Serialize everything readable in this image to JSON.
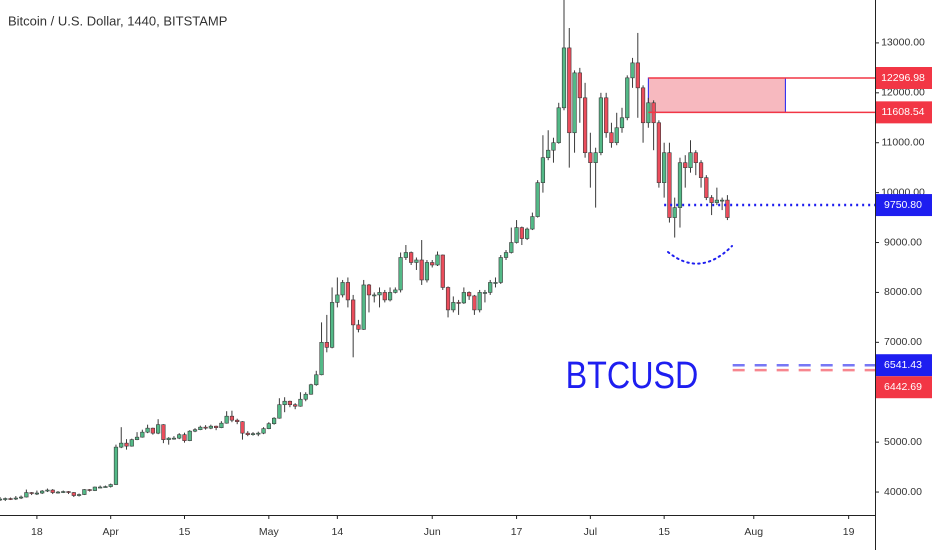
{
  "chart_data": {
    "type": "candlestick",
    "title": "Bitcoin / U.S. Dollar, 1440, BITSTAMP",
    "annotation": "BTCUSD",
    "x": [
      "Mar 11",
      "Mar 12",
      "Mar 13",
      "Mar 14",
      "Mar 15",
      "Mar 16",
      "Mar 17",
      "Mar 18",
      "Mar 19",
      "Mar 20",
      "Mar 21",
      "Mar 22",
      "Mar 23",
      "Mar 24",
      "Mar 25",
      "Mar 26",
      "Mar 27",
      "Mar 28",
      "Mar 29",
      "Mar 30",
      "Mar 31",
      "Apr 1",
      "Apr 2",
      "Apr 3",
      "Apr 4",
      "Apr 5",
      "Apr 6",
      "Apr 7",
      "Apr 8",
      "Apr 9",
      "Apr 10",
      "Apr 11",
      "Apr 12",
      "Apr 13",
      "Apr 14",
      "Apr 15",
      "Apr 16",
      "Apr 17",
      "Apr 18",
      "Apr 19",
      "Apr 20",
      "Apr 21",
      "Apr 22",
      "Apr 23",
      "Apr 24",
      "Apr 25",
      "Apr 26",
      "Apr 27",
      "Apr 28",
      "Apr 29",
      "Apr 30",
      "May 1",
      "May 2",
      "May 3",
      "May 4",
      "May 5",
      "May 6",
      "May 7",
      "May 8",
      "May 9",
      "May 10",
      "May 11",
      "May 12",
      "May 13",
      "May 14",
      "May 15",
      "May 16",
      "May 17",
      "May 18",
      "May 19",
      "May 20",
      "May 21",
      "May 22",
      "May 23",
      "May 24",
      "May 25",
      "May 26",
      "May 27",
      "May 28",
      "May 29",
      "May 30",
      "May 31",
      "Jun 1",
      "Jun 2",
      "Jun 3",
      "Jun 4",
      "Jun 5",
      "Jun 6",
      "Jun 7",
      "Jun 8",
      "Jun 9",
      "Jun 10",
      "Jun 11",
      "Jun 12",
      "Jun 13",
      "Jun 14",
      "Jun 15",
      "Jun 16",
      "Jun 17",
      "Jun 18",
      "Jun 19",
      "Jun 20",
      "Jun 21",
      "Jun 22",
      "Jun 23",
      "Jun 24",
      "Jun 25",
      "Jun 26",
      "Jun 27",
      "Jun 28",
      "Jun 29",
      "Jun 30",
      "Jul 1",
      "Jul 2",
      "Jul 3",
      "Jul 4",
      "Jul 5",
      "Jul 6",
      "Jul 7",
      "Jul 8",
      "Jul 9",
      "Jul 10",
      "Jul 11",
      "Jul 12",
      "Jul 13",
      "Jul 14",
      "Jul 15",
      "Jul 16",
      "Jul 17",
      "Jul 18",
      "Jul 19",
      "Jul 20",
      "Jul 21",
      "Jul 22",
      "Jul 23",
      "Jul 24",
      "Jul 25",
      "Jul 26",
      "Jul 27"
    ],
    "open": [
      3850,
      3860,
      3870,
      3865,
      3880,
      3900,
      3990,
      3970,
      3980,
      4020,
      4040,
      3990,
      4000,
      4010,
      3990,
      3930,
      3950,
      4050,
      4030,
      4100,
      4100,
      4110,
      4150,
      4900,
      4980,
      4920,
      5050,
      5100,
      5200,
      5280,
      5180,
      5350,
      5050,
      5080,
      5080,
      5150,
      5030,
      5220,
      5250,
      5300,
      5280,
      5320,
      5290,
      5380,
      5520,
      5440,
      5410,
      5180,
      5150,
      5170,
      5180,
      5270,
      5370,
      5480,
      5750,
      5820,
      5750,
      5720,
      5860,
      5960,
      6150,
      6350,
      7000,
      6900,
      7800,
      7950,
      8200,
      7850,
      7350,
      7260,
      8150,
      7950,
      7950,
      8000,
      7850,
      8000,
      8050,
      8700,
      8800,
      8600,
      8650,
      8250,
      8600,
      8550,
      8750,
      8100,
      7650,
      7800,
      7790,
      8000,
      7930,
      7650,
      8000,
      8000,
      8200,
      8200,
      8700,
      8800,
      9000,
      9300,
      9080,
      9270,
      9520,
      10200,
      10700,
      10850,
      11000,
      11700,
      12900,
      11200,
      12400,
      11900,
      10800,
      10600,
      10800,
      11900,
      11200,
      11000,
      11300,
      11500,
      12300,
      12600,
      12100,
      11400,
      11800,
      11400,
      10200,
      10800,
      9500,
      9700,
      10600,
      10500,
      10800,
      10600,
      10300,
      9900,
      9800,
      9850,
      9850
    ],
    "high": [
      3900,
      3890,
      3890,
      3920,
      3930,
      4050,
      4000,
      4030,
      4040,
      4070,
      4060,
      4020,
      4030,
      4020,
      4000,
      3970,
      4060,
      4060,
      4110,
      4130,
      4130,
      4170,
      4950,
      5300,
      5060,
      5070,
      5200,
      5250,
      5350,
      5290,
      5460,
      5360,
      5100,
      5120,
      5180,
      5190,
      5240,
      5280,
      5330,
      5340,
      5350,
      5330,
      5420,
      5620,
      5630,
      5470,
      5420,
      5220,
      5200,
      5210,
      5300,
      5400,
      5500,
      5880,
      5900,
      5830,
      5780,
      6000,
      6000,
      6170,
      6430,
      7400,
      7550,
      8100,
      8300,
      8250,
      8300,
      7950,
      7450,
      8250,
      8170,
      8000,
      8100,
      8050,
      8100,
      8100,
      8800,
      8950,
      8820,
      8700,
      9050,
      8650,
      8650,
      8820,
      8760,
      8120,
      7920,
      7850,
      8100,
      8020,
      7950,
      8050,
      8050,
      8250,
      8300,
      8750,
      8850,
      9300,
      9450,
      9320,
      9300,
      9600,
      10250,
      11150,
      11250,
      11100,
      11800,
      13860,
      13300,
      12450,
      12500,
      12200,
      11200,
      10900,
      12000,
      12000,
      11400,
      11600,
      11700,
      12350,
      12700,
      13200,
      12150,
      11900,
      11850,
      11450,
      11000,
      11000,
      9900,
      10700,
      10750,
      11050,
      10850,
      10650,
      10350,
      9950,
      10100,
      9900,
      9950
    ],
    "low": [
      3820,
      3820,
      3840,
      3840,
      3860,
      3890,
      3940,
      3940,
      3960,
      4000,
      3960,
      3970,
      3980,
      3960,
      3900,
      3910,
      3940,
      4010,
      4020,
      4080,
      4090,
      4090,
      4140,
      4880,
      4850,
      4910,
      5040,
      5090,
      5180,
      5150,
      5160,
      4980,
      4950,
      5050,
      5060,
      4990,
      5020,
      5200,
      5240,
      5250,
      5260,
      5240,
      5280,
      5370,
      5400,
      5360,
      5050,
      5120,
      5130,
      5120,
      5160,
      5260,
      5350,
      5470,
      5600,
      5700,
      5660,
      5710,
      5820,
      5950,
      6130,
      6340,
      6800,
      6880,
      7700,
      7900,
      7700,
      6700,
      7200,
      7250,
      7600,
      7800,
      7700,
      7800,
      7820,
      7980,
      8000,
      8650,
      8550,
      8450,
      8150,
      8200,
      8500,
      8530,
      8050,
      7500,
      7600,
      7550,
      7770,
      7850,
      7550,
      7600,
      7800,
      7950,
      8100,
      8170,
      8650,
      8780,
      8980,
      8950,
      9050,
      9250,
      9500,
      10000,
      10650,
      10600,
      10980,
      11650,
      10500,
      10800,
      11400,
      10700,
      10100,
      9700,
      10750,
      11100,
      10900,
      10950,
      11200,
      11450,
      12100,
      11500,
      11000,
      11300,
      10850,
      10100,
      9900,
      9400,
      9100,
      9300,
      10100,
      10400,
      10350,
      10100,
      9850,
      9550,
      9750,
      9650,
      9450
    ],
    "close": [
      3860,
      3870,
      3865,
      3880,
      3900,
      3990,
      3970,
      3980,
      4020,
      4040,
      3990,
      4000,
      4010,
      3990,
      3930,
      3950,
      4050,
      4030,
      4100,
      4100,
      4110,
      4150,
      4900,
      4980,
      4920,
      5050,
      5100,
      5200,
      5280,
      5180,
      5350,
      5050,
      5080,
      5080,
      5150,
      5030,
      5220,
      5250,
      5300,
      5280,
      5320,
      5290,
      5380,
      5520,
      5440,
      5410,
      5180,
      5150,
      5170,
      5180,
      5270,
      5370,
      5480,
      5750,
      5820,
      5750,
      5720,
      5860,
      5960,
      6150,
      6350,
      7000,
      6900,
      7800,
      7950,
      8200,
      7850,
      7350,
      7260,
      8150,
      7950,
      7950,
      8000,
      7850,
      8000,
      8050,
      8700,
      8800,
      8600,
      8650,
      8250,
      8600,
      8550,
      8750,
      8100,
      7650,
      7800,
      7790,
      8000,
      7930,
      7650,
      8000,
      8000,
      8200,
      8200,
      8700,
      8800,
      9000,
      9300,
      9080,
      9270,
      9520,
      10200,
      10700,
      10850,
      11000,
      11700,
      12900,
      11200,
      12400,
      11900,
      10800,
      10600,
      10800,
      11900,
      11200,
      11000,
      11300,
      11500,
      12300,
      12600,
      12100,
      11400,
      11800,
      11400,
      10200,
      10800,
      9500,
      9700,
      10600,
      10500,
      10800,
      10600,
      10300,
      9900,
      9800,
      9850,
      9850,
      9500
    ],
    "up_color": "#53b987",
    "down_color": "#eb4d5c",
    "xlim": [
      "Mar 11",
      "Aug 24"
    ],
    "xticks": [
      {
        "value": "Mar 18",
        "label": "18"
      },
      {
        "value": "Apr 1",
        "label": "Apr"
      },
      {
        "value": "Apr 15",
        "label": "15"
      },
      {
        "value": "May 1",
        "label": "May"
      },
      {
        "value": "May 14",
        "label": "14"
      },
      {
        "value": "Jun 1",
        "label": "Jun"
      },
      {
        "value": "Jun 17",
        "label": "17"
      },
      {
        "value": "Jul 1",
        "label": "Jul"
      },
      {
        "value": "Jul 15",
        "label": "15"
      },
      {
        "value": "Aug 1",
        "label": "Aug"
      },
      {
        "value": "Aug 19",
        "label": "19"
      }
    ],
    "ylim": [
      3540,
      13860
    ],
    "yticks": [
      {
        "value": 4000,
        "label": "4000.00"
      },
      {
        "value": 5000,
        "label": "5000.00"
      },
      {
        "value": 7000,
        "label": "7000.00"
      },
      {
        "value": 8000,
        "label": "8000.00"
      },
      {
        "value": 9000,
        "label": "9000.00"
      },
      {
        "value": 10000,
        "label": "10000.00"
      },
      {
        "value": 11000,
        "label": "11000.00"
      },
      {
        "value": 12000,
        "label": "12000.00"
      },
      {
        "value": 13000,
        "label": "13000.00"
      }
    ],
    "grid": false,
    "levels": [
      {
        "value": 12296.98,
        "label": "12296.98",
        "color": "#f23645",
        "from": "Jul 12",
        "style": "solid"
      },
      {
        "value": 11608.54,
        "label": "11608.54",
        "color": "#f23645",
        "from": "Jul 12",
        "style": "solid"
      },
      {
        "value": 9750.8,
        "label": "9750.80",
        "color": "#1e1ef0",
        "from": "Jul 15",
        "style": "dotted"
      },
      {
        "value": 6541.43,
        "label": "6541.43",
        "color": "#1e1ef0",
        "from": "Jul 28",
        "style": "dashed"
      },
      {
        "value": 6442.69,
        "label": "6442.69",
        "color": "#f23645",
        "from": "Jul 28",
        "style": "dashed"
      }
    ],
    "zone": {
      "to": "Aug 7",
      "fill": "#f7b9bf",
      "border": "#1e1ef0"
    }
  }
}
